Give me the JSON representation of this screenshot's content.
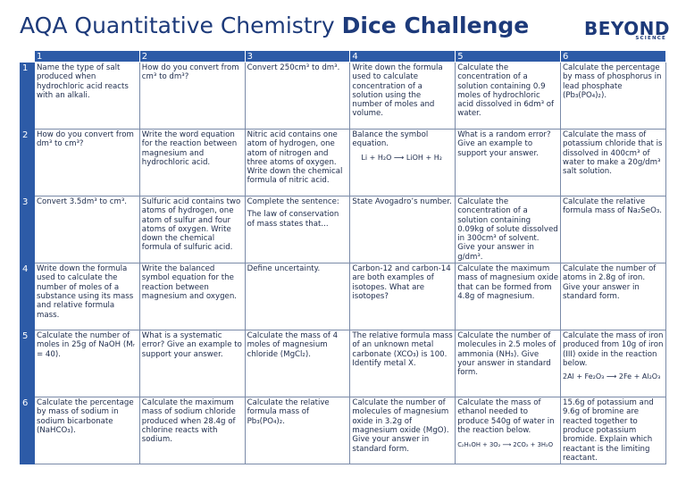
{
  "header": {
    "title_regular": "AQA Quantitative Chemistry",
    "title_bold": "Dice Challenge",
    "logo_main": "BEYOND",
    "logo_sub": "SCIENCE"
  },
  "columns": [
    "1",
    "2",
    "3",
    "4",
    "5",
    "6"
  ],
  "rows": [
    {
      "n": "1",
      "cells": [
        "Name the type of salt produced when hydrochloric acid reacts with an alkali.",
        "How do you convert from cm³ to dm³?",
        "Convert 250cm³ to dm³.",
        "Write down the formula used to calculate concentration of a solution using the number of moles and volume.",
        "Calculate the concentration of a solution containing 0.9 moles of hydrochloric acid dissolved in 6dm³ of water.",
        "Calculate the percentage by mass of phosphorus in lead phosphate (Pb₃(PO₄)₂)."
      ]
    },
    {
      "n": "2",
      "cells": [
        "How do you convert from dm³ to cm³?",
        "Write the word equation for the reaction between magnesium and hydrochloric acid.",
        "Nitric acid contains one atom of hydrogen, one atom of nitrogen and three atoms of oxygen. Write down the chemical formula of nitric acid.",
        {
          "text": "Balance the symbol equation.",
          "eq": "Li + H₂O ⟶ LiOH + H₂"
        },
        "What is a random error? Give an example to support your answer.",
        "Calculate the mass of potassium chloride that is dissolved in 400cm³ of water to make a 20g/dm³ salt solution."
      ]
    },
    {
      "n": "3",
      "cells": [
        "Convert 3.5dm³ to cm³.",
        "Sulfuric acid contains two atoms of hydrogen, one atom of sulfur and four atoms of oxygen. Write down the chemical formula of sulfuric acid.",
        {
          "text": "Complete the sentence:",
          "text2": "The law of conservation of mass states that..."
        },
        "State Avogadro’s number.",
        "Calculate the concentration of a solution containing 0.09kg of solute dissolved in 300cm³ of solvent. Give your answer in g/dm³.",
        "Calculate the relative formula mass of Na₂SeO₃."
      ]
    },
    {
      "n": "4",
      "cells": [
        "Write down the formula used to calculate the number of moles of a substance using its mass and relative formula mass.",
        "Write the balanced symbol equation for the reaction between magnesium and oxygen.",
        "Define uncertainty.",
        "Carbon-12 and carbon-14 are both examples of isotopes. What are isotopes?",
        "Calculate the maximum mass of magnesium oxide that can be formed from 4.8g of magnesium.",
        "Calculate the number of atoms in 2.8g of iron. Give your answer in standard form."
      ]
    },
    {
      "n": "5",
      "cells": [
        "Calculate the number of moles in 25g of NaOH (Mᵣ = 40).",
        "What is a systematic error? Give an example to support your answer.",
        "Calculate the mass of 4 moles of magnesium chloride (MgCl₂).",
        "The relative formula mass of an unknown metal carbonate (XCO₃) is 100. Identify metal X.",
        "Calculate the number of molecules in 2.5 moles of ammonia (NH₃). Give your answer in standard form.",
        {
          "text": "Calculate the mass of iron produced from 10g of iron (III) oxide in the reaction below.",
          "eq": "2Al + Fe₂O₃ ⟶ 2Fe + Al₂O₃"
        }
      ]
    },
    {
      "n": "6",
      "cells": [
        "Calculate the percentage by mass of sodium in sodium bicarbonate (NaHCO₃).",
        "Calculate the maximum mass of sodium chloride produced when 28.4g of chlorine reacts with sodium.",
        "Calculate the relative formula mass of Pb₃(PO₄)₂.",
        "Calculate the number of molecules of magnesium oxide in 3.2g of magnesium oxide (MgO). Give your answer in standard form.",
        {
          "text": "Calculate the mass of ethanol needed to produce 540g of water in the reaction below.",
          "eq2": "C₂H₅OH + 3O₂ ⟶ 2CO₂ + 3H₂O"
        },
        "15.6g of potassium and 9.6g of bromine are reacted together to produce potassium bromide. Explain which reactant is the limiting reactant."
      ]
    }
  ]
}
